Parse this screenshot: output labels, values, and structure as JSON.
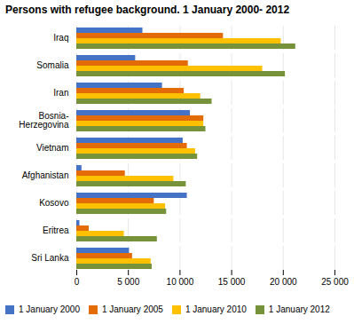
{
  "chart_data": {
    "type": "bar",
    "orientation": "horizontal",
    "title": "Persons with refugee background. 1 January 2000- 2012",
    "categories": [
      "Iraq",
      "Somalia",
      "Iran",
      "Bosnia-\nHerzegovina",
      "Vietnam",
      "Afghanistan",
      "Kosovo",
      "Eritrea",
      "Sri Lanka"
    ],
    "series": [
      {
        "name": "1 January 2000",
        "color": "#4472C4",
        "values": [
          6400,
          5700,
          8300,
          11000,
          10300,
          500,
          10700,
          300,
          5100
        ]
      },
      {
        "name": "1 January 2005",
        "color": "#E36C09",
        "values": [
          14200,
          10800,
          10400,
          12300,
          10700,
          4700,
          7500,
          1200,
          5400
        ]
      },
      {
        "name": "1 January 2010",
        "color": "#FFC000",
        "values": [
          19800,
          18000,
          12000,
          12300,
          11500,
          9400,
          8600,
          4600,
          7200
        ]
      },
      {
        "name": "1 January 2012",
        "color": "#76933C",
        "values": [
          21200,
          20200,
          13100,
          12500,
          11700,
          10600,
          8700,
          7800,
          7300
        ]
      }
    ],
    "xlim": [
      0,
      25000
    ],
    "xticks": [
      0,
      {
        "value": 5000,
        "label": "5 000"
      },
      {
        "value": 10000,
        "label": "10 000"
      },
      {
        "value": 15000,
        "label": "15 000"
      },
      {
        "value": 20000,
        "label": "20 000"
      },
      {
        "value": 25000,
        "label": "25 000"
      }
    ],
    "grid": true,
    "legend": "bottom"
  }
}
